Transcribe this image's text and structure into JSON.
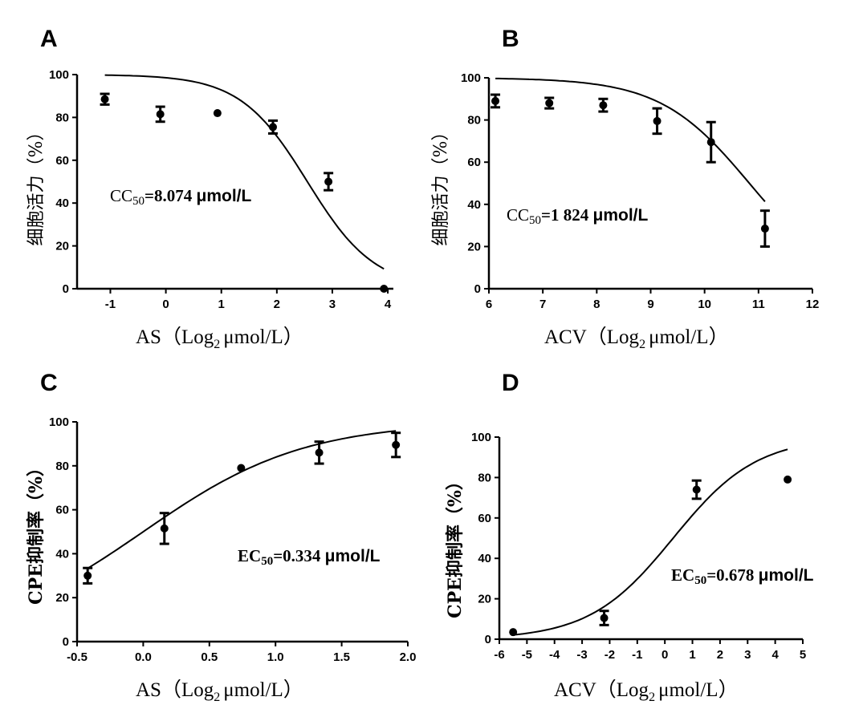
{
  "chart_data": [
    {
      "panel": "A",
      "type": "scatter",
      "xlabel_main": "AS（Log",
      "xlabel_sub": "2",
      "xlabel_tail": "μmol/L）",
      "ylabel": "细胞活力（%）",
      "xlim": [
        -1.6,
        4.1
      ],
      "ylim": [
        0,
        100
      ],
      "xticks": [
        -1,
        0,
        1,
        2,
        3,
        4
      ],
      "xtick_labels": [
        "-1",
        "0",
        "1",
        "2",
        "3",
        "4"
      ],
      "yticks": [
        0,
        20,
        40,
        60,
        80,
        100
      ],
      "ytick_labels": [
        "0",
        "20",
        "40",
        "60",
        "80",
        "100"
      ],
      "points": [
        {
          "x": -1.1,
          "y": 88.5,
          "err": 2.5
        },
        {
          "x": -0.1,
          "y": 81.5,
          "err": 3.5
        },
        {
          "x": 0.93,
          "y": 82,
          "err": 0
        },
        {
          "x": 1.93,
          "y": 75.5,
          "err": 3
        },
        {
          "x": 2.93,
          "y": 50,
          "err": 4
        },
        {
          "x": 3.93,
          "y": 0,
          "err": 0
        }
      ],
      "fit": {
        "model": "sigmoid",
        "top": 100,
        "bottom": 0,
        "midpoint": 2.55,
        "slope": -0.75,
        "x_range": [
          -1.1,
          3.93
        ]
      },
      "annotation": {
        "prefix": "CC",
        "sub": "50",
        "value": "=8.074 ",
        "unit": "μmol/L"
      }
    },
    {
      "panel": "B",
      "type": "scatter",
      "xlabel_main": "ACV（Log",
      "xlabel_sub": "2",
      "xlabel_tail": "μmol/L）",
      "ylabel": "细胞活力（%）",
      "xlim": [
        6,
        12
      ],
      "ylim": [
        0,
        100
      ],
      "xticks": [
        6,
        7,
        8,
        9,
        10,
        11,
        12
      ],
      "xtick_labels": [
        "6",
        "7",
        "8",
        "9",
        "10",
        "11",
        "12"
      ],
      "yticks": [
        0,
        20,
        40,
        60,
        80,
        100
      ],
      "ytick_labels": [
        "0",
        "20",
        "40",
        "60",
        "80",
        "100"
      ],
      "points": [
        {
          "x": 6.12,
          "y": 89,
          "err": 3
        },
        {
          "x": 7.12,
          "y": 88,
          "err": 2.5
        },
        {
          "x": 8.12,
          "y": 87,
          "err": 3
        },
        {
          "x": 9.12,
          "y": 79.5,
          "err": 6
        },
        {
          "x": 10.12,
          "y": 69.5,
          "err": 9.5
        },
        {
          "x": 11.12,
          "y": 28.5,
          "err": 8.5
        }
      ],
      "fit": {
        "model": "sigmoid",
        "top": 100,
        "bottom": 0,
        "midpoint": 10.83,
        "slope": -0.55,
        "x_range": [
          6.12,
          11.12
        ]
      },
      "annotation": {
        "prefix": "CC",
        "sub": "50",
        "value": "=1 824  ",
        "unit": "μmol/L"
      }
    },
    {
      "panel": "C",
      "type": "scatter",
      "xlabel_main": "AS（Log",
      "xlabel_sub": "2",
      "xlabel_tail": "μmol/L）",
      "ylabel": "CPE抑制率（%）",
      "xlim": [
        -0.5,
        2.0
      ],
      "ylim": [
        0,
        100
      ],
      "xticks": [
        -0.5,
        0.0,
        0.5,
        1.0,
        1.5,
        2.0
      ],
      "xtick_labels": [
        "-0.5",
        "0.0",
        "0.5",
        "1.0",
        "1.5",
        "2.0"
      ],
      "yticks": [
        0,
        20,
        40,
        60,
        80,
        100
      ],
      "ytick_labels": [
        "0",
        "20",
        "40",
        "60",
        "80",
        "100"
      ],
      "points": [
        {
          "x": -0.42,
          "y": 30,
          "err": 3.5
        },
        {
          "x": 0.16,
          "y": 51.5,
          "err": 7
        },
        {
          "x": 0.74,
          "y": 79,
          "err": 0
        },
        {
          "x": 1.33,
          "y": 86,
          "err": 5
        },
        {
          "x": 1.91,
          "y": 89.5,
          "err": 5.5
        }
      ],
      "fit": {
        "model": "sigmoid",
        "top": 100,
        "bottom": 0,
        "midpoint": 0.0,
        "slope": 0.75,
        "x_range": [
          -0.42,
          1.91
        ]
      },
      "annotation": {
        "prefix": "EC",
        "sub": "50",
        "value": "=0.334 ",
        "unit": "μmol/L"
      }
    },
    {
      "panel": "D",
      "type": "scatter",
      "xlabel_main": "ACV（Log",
      "xlabel_sub": "2",
      "xlabel_tail": "μmol/L）",
      "ylabel": "CPE抑制率（%）",
      "xlim": [
        -6,
        5
      ],
      "ylim": [
        0,
        100
      ],
      "xticks": [
        -6,
        -5,
        -4,
        -3,
        -2,
        -1,
        0,
        1,
        2,
        3,
        4,
        5
      ],
      "xtick_labels": [
        "-6",
        "-5",
        "-4",
        "-3",
        "-2",
        "-1",
        "0",
        "1",
        "2",
        "3",
        "4",
        "5"
      ],
      "yticks": [
        0,
        20,
        40,
        60,
        80,
        100
      ],
      "ytick_labels": [
        "0",
        "20",
        "40",
        "60",
        "80",
        "100"
      ],
      "points": [
        {
          "x": -5.5,
          "y": 3.5,
          "err": 0
        },
        {
          "x": -2.2,
          "y": 10.5,
          "err": 3.5
        },
        {
          "x": 1.15,
          "y": 74,
          "err": 4.5
        },
        {
          "x": 4.45,
          "y": 79,
          "err": 0
        }
      ],
      "fit": {
        "model": "sigmoid",
        "top": 100,
        "bottom": 0,
        "midpoint": 0.3,
        "slope": 0.3,
        "x_range": [
          -5.5,
          4.45
        ]
      },
      "annotation": {
        "prefix": "EC",
        "sub": "50",
        "value": "=0.678  ",
        "unit": "μmol/L"
      }
    }
  ]
}
